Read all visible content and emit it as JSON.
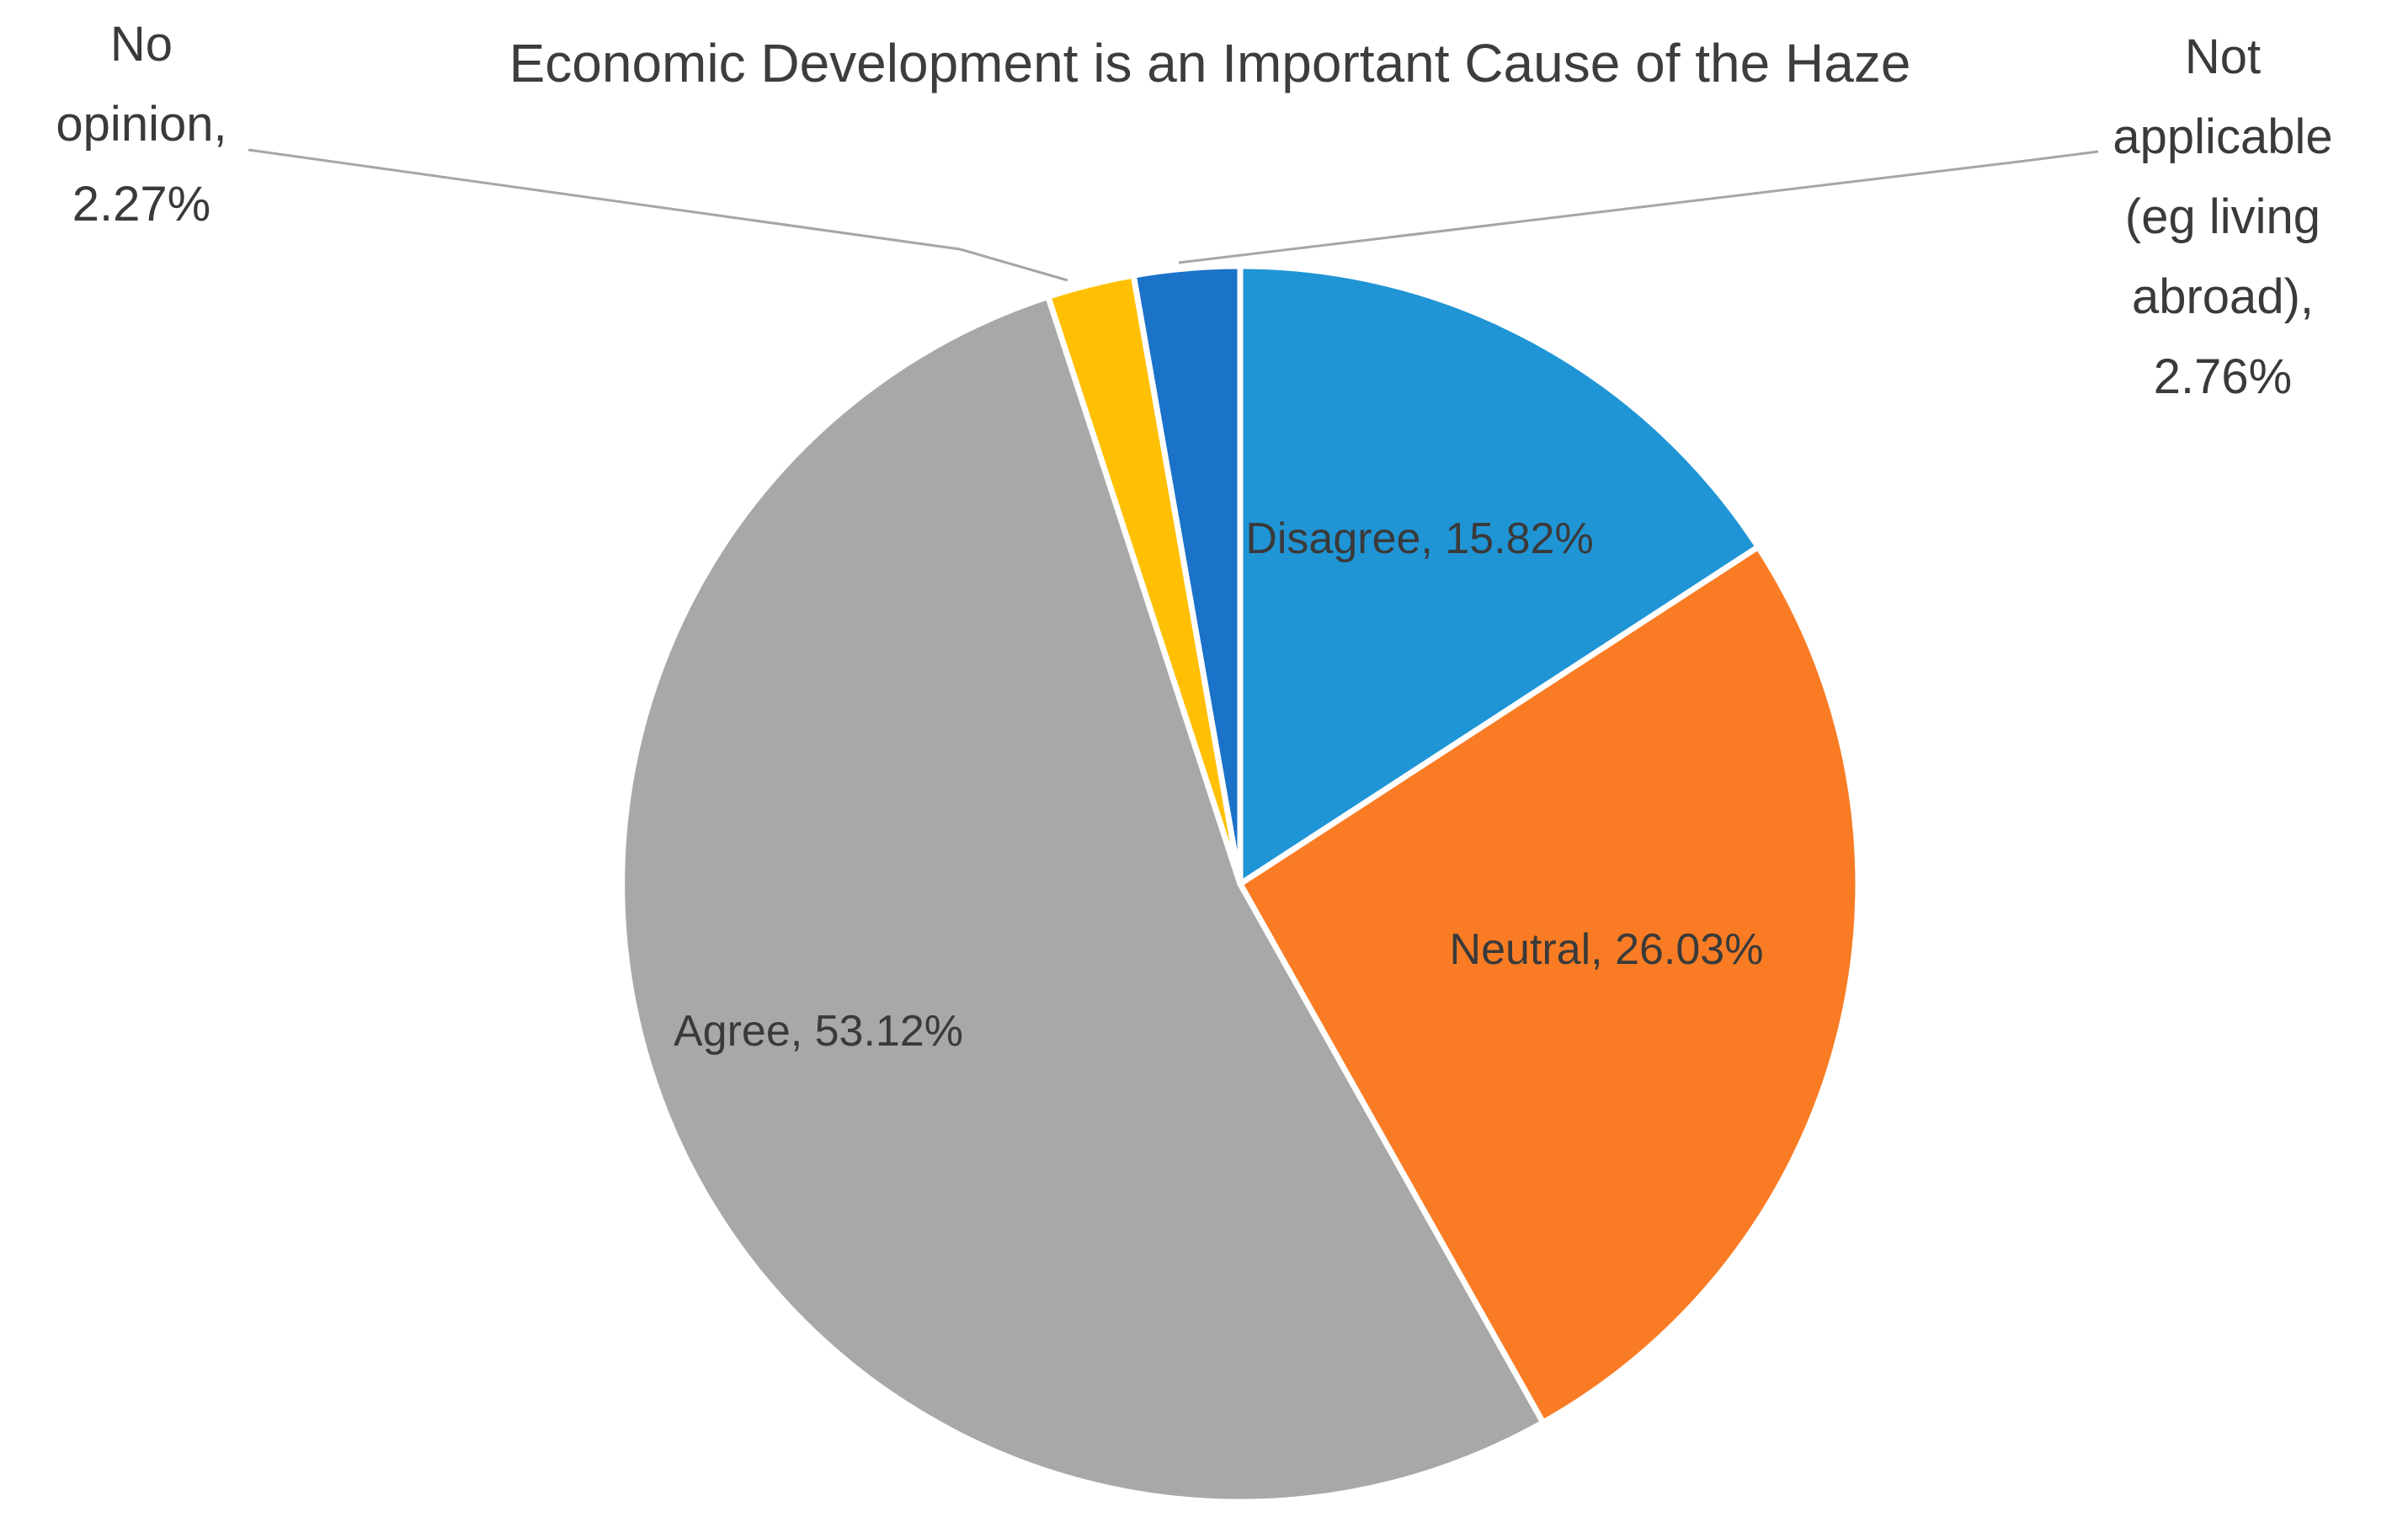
{
  "chart_data": {
    "type": "pie",
    "title": "Economic Development is an Important Cause of the Haze",
    "unit": "%",
    "start_angle_deg": 0,
    "direction": "clockwise",
    "legend": "none",
    "data_label_format": "category name, percentage",
    "categories": [
      "Disagree",
      "Neutral",
      "Agree",
      "No opinion",
      "Not applicable (eg living abroad)"
    ],
    "values": [
      15.82,
      26.03,
      53.12,
      2.27,
      2.76
    ],
    "slices": [
      {
        "label": "Disagree",
        "value": 15.82,
        "color": "#2095d5",
        "data_label": "Disagree, 15.82%",
        "label_placement": "inside"
      },
      {
        "label": "Neutral",
        "value": 26.03,
        "color": "#f97c25",
        "data_label": "Neutral, 26.03%",
        "label_placement": "inside"
      },
      {
        "label": "Agree",
        "value": 53.12,
        "color": "#a8a8a8",
        "data_label": "Agree, 53.12%",
        "label_placement": "inside"
      },
      {
        "label": "No opinion",
        "value": 2.27,
        "color": "#ffc003",
        "data_label": "No\nopinion,\n2.27%",
        "label_placement": "outside-left"
      },
      {
        "label": "Not applicable (eg living abroad)",
        "value": 2.76,
        "color": "#1b72c9",
        "data_label": "Not\napplicable\n(eg living\nabroad),\n2.76%",
        "label_placement": "outside-right"
      }
    ],
    "colors": {
      "text": "#3a3a3a",
      "title_text": "#3d3d3d",
      "leader_line": "#a6a6a6",
      "slice_border": "#ffffff",
      "background": "#ffffff"
    }
  }
}
